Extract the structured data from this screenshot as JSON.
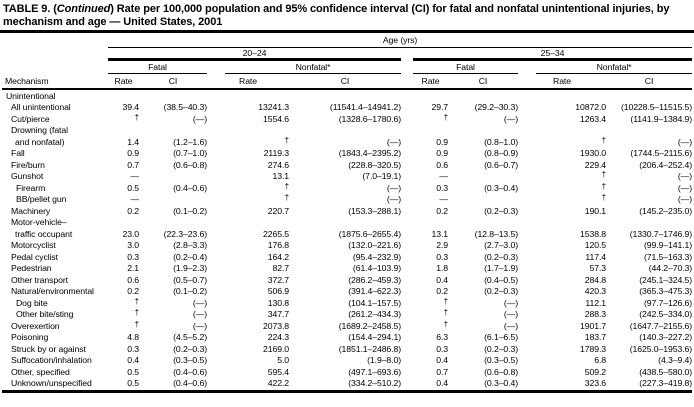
{
  "colors": {
    "text": "#000000",
    "background": "#ffffff"
  },
  "title": {
    "prefix": "TABLE 9. (",
    "italic": "Continued",
    "suffix": ") Rate per 100,000 population and 95% confidence interval (CI) for fatal and nonfatal unintentional injuries, by mechanism and age — United States, 2001"
  },
  "header": {
    "age_label": "Age (yrs)",
    "group1": "20–24",
    "group2": "25–34",
    "sub_fatal": "Fatal",
    "sub_nonfatal": "Nonfatal*",
    "mechanism_col": "Mechanism",
    "rate_col": "Rate",
    "ci_col": "CI"
  },
  "rows": [
    {
      "label": [
        "Unintentional"
      ],
      "indent": 0,
      "cells": [
        "",
        "",
        "",
        "",
        "",
        "",
        "",
        ""
      ]
    },
    {
      "label": [
        "All unintentional"
      ],
      "indent": 1,
      "cells": [
        "39.4",
        "(38.5–40.3)",
        "13241.3",
        "(11541.4–14941.2)",
        "29.7",
        "(29.2–30.3)",
        "10872.0",
        "(10228.5–11515.5)"
      ]
    },
    {
      "label": [
        "Cut/pierce"
      ],
      "indent": 1,
      "cells": [
        "†",
        "(—)",
        "1554.6",
        "(1328.6–1780.6)",
        "†",
        "(—)",
        "1263.4",
        "(1141.9–1384.9)"
      ]
    },
    {
      "label": [
        "Drowning (fatal",
        "and nonfatal)"
      ],
      "indent": 1,
      "cells": [
        "1.4",
        "(1.2–1.6)",
        "†",
        "(—)",
        "0.9",
        "(0.8–1.0)",
        "†",
        "(—)"
      ]
    },
    {
      "label": [
        "Fall"
      ],
      "indent": 1,
      "cells": [
        "0.9",
        "(0.7–1.0)",
        "2119.3",
        "(1843.4–2395.2)",
        "0.9",
        "(0.8–0.9)",
        "1930.0",
        "(1744.5–2115.6)"
      ]
    },
    {
      "label": [
        "Fire/burn"
      ],
      "indent": 1,
      "cells": [
        "0.7",
        "(0.6–0.8)",
        "274.6",
        "(228.8–320.5)",
        "0.6",
        "(0.6–0.7)",
        "229.4",
        "(206.4–252.4)"
      ]
    },
    {
      "label": [
        "Gunshot"
      ],
      "indent": 1,
      "cells": [
        "—",
        "",
        "13.1",
        "(7.0–19.1)",
        "—",
        "",
        "†",
        "(—)"
      ]
    },
    {
      "label": [
        "Firearm"
      ],
      "indent": 2,
      "cells": [
        "0.5",
        "(0.4–0.6)",
        "†",
        "(—)",
        "0.3",
        "(0.3–0.4)",
        "†",
        "(—)"
      ]
    },
    {
      "label": [
        "BB/pellet gun"
      ],
      "indent": 2,
      "cells": [
        "—",
        "",
        "†",
        "(—)",
        "—",
        "",
        "†",
        "(—)"
      ]
    },
    {
      "label": [
        "Machinery"
      ],
      "indent": 1,
      "cells": [
        "0.2",
        "(0.1–0.2)",
        "220.7",
        "(153.3–288.1)",
        "0.2",
        "(0.2–0.3)",
        "190.1",
        "(145.2–235.0)"
      ]
    },
    {
      "label": [
        "Motor-vehicle–",
        "traffic occupant"
      ],
      "indent": 1,
      "cells": [
        "23.0",
        "(22.3–23.6)",
        "2265.5",
        "(1875.6–2655.4)",
        "13.1",
        "(12.8–13.5)",
        "1538.8",
        "(1330.7–1746.9)"
      ]
    },
    {
      "label": [
        "Motorcyclist"
      ],
      "indent": 1,
      "cells": [
        "3.0",
        "(2.8–3.3)",
        "176.8",
        "(132.0–221.6)",
        "2.9",
        "(2.7–3.0)",
        "120.5",
        "(99.9–141.1)"
      ]
    },
    {
      "label": [
        "Pedal cyclist"
      ],
      "indent": 1,
      "cells": [
        "0.3",
        "(0.2–0.4)",
        "164.2",
        "(95.4–232.9)",
        "0.3",
        "(0.2–0.3)",
        "117.4",
        "(71.5–163.3)"
      ]
    },
    {
      "label": [
        "Pedestrian"
      ],
      "indent": 1,
      "cells": [
        "2.1",
        "(1.9–2.3)",
        "82.7",
        "(61.4–103.9)",
        "1.8",
        "(1.7–1.9)",
        "57.3",
        "(44.2–70.3)"
      ]
    },
    {
      "label": [
        "Other transport"
      ],
      "indent": 1,
      "cells": [
        "0.6",
        "(0.5–0.7)",
        "372.7",
        "(286.2–459.3)",
        "0.4",
        "(0.4–0.5)",
        "284.8",
        "(245.1–324.5)"
      ]
    },
    {
      "label": [
        "Natural/environmental"
      ],
      "indent": 1,
      "cells": [
        "0.2",
        "(0.1–0.2)",
        "506.9",
        "(391.4–622.3)",
        "0.2",
        "(0.2–0.3)",
        "420.3",
        "(365.3–475.3)"
      ]
    },
    {
      "label": [
        "Dog bite"
      ],
      "indent": 2,
      "cells": [
        "†",
        "(—)",
        "130.8",
        "(104.1–157.5)",
        "†",
        "(—)",
        "112.1",
        "(97.7–126.6)"
      ]
    },
    {
      "label": [
        "Other bite/sting"
      ],
      "indent": 2,
      "cells": [
        "†",
        "(—)",
        "347.7",
        "(261.2–434.3)",
        "†",
        "(—)",
        "288.3",
        "(242.5–334.0)"
      ]
    },
    {
      "label": [
        "Overexertion"
      ],
      "indent": 1,
      "cells": [
        "†",
        "(—)",
        "2073.8",
        "(1689.2–2458.5)",
        "†",
        "(—)",
        "1901.7",
        "(1647.7–2155.6)"
      ]
    },
    {
      "label": [
        "Poisoning"
      ],
      "indent": 1,
      "cells": [
        "4.8",
        "(4.5–5.2)",
        "224.3",
        "(154.4–294.1)",
        "6.3",
        "(6.1–6.5)",
        "183.7",
        "(140.3–227.2)"
      ]
    },
    {
      "label": [
        "Struck by or against"
      ],
      "indent": 1,
      "cells": [
        "0.3",
        "(0.2–0.3)",
        "2169.0",
        "(1851.1–2486.8)",
        "0.3",
        "(0.2–0.3)",
        "1789.3",
        "(1625.0–1953.6)"
      ]
    },
    {
      "label": [
        "Suffocation/inhalation"
      ],
      "indent": 1,
      "cells": [
        "0.4",
        "(0.3–0.5)",
        "5.0",
        "(1.9–8.0)",
        "0.4",
        "(0.3–0.5)",
        "6.8",
        "(4.3–9.4)"
      ]
    },
    {
      "label": [
        "Other, specified"
      ],
      "indent": 1,
      "cells": [
        "0.5",
        "(0.4–0.6)",
        "595.4",
        "(497.1–693.6)",
        "0.7",
        "(0.6–0.8)",
        "509.2",
        "(438.5–580.0)"
      ]
    },
    {
      "label": [
        "Unknown/unspecified"
      ],
      "indent": 1,
      "cells": [
        "0.5",
        "(0.4–0.6)",
        "422.2",
        "(334.2–510.2)",
        "0.4",
        "(0.3–0.4)",
        "323.6",
        "(227.3–419.8)"
      ]
    }
  ]
}
